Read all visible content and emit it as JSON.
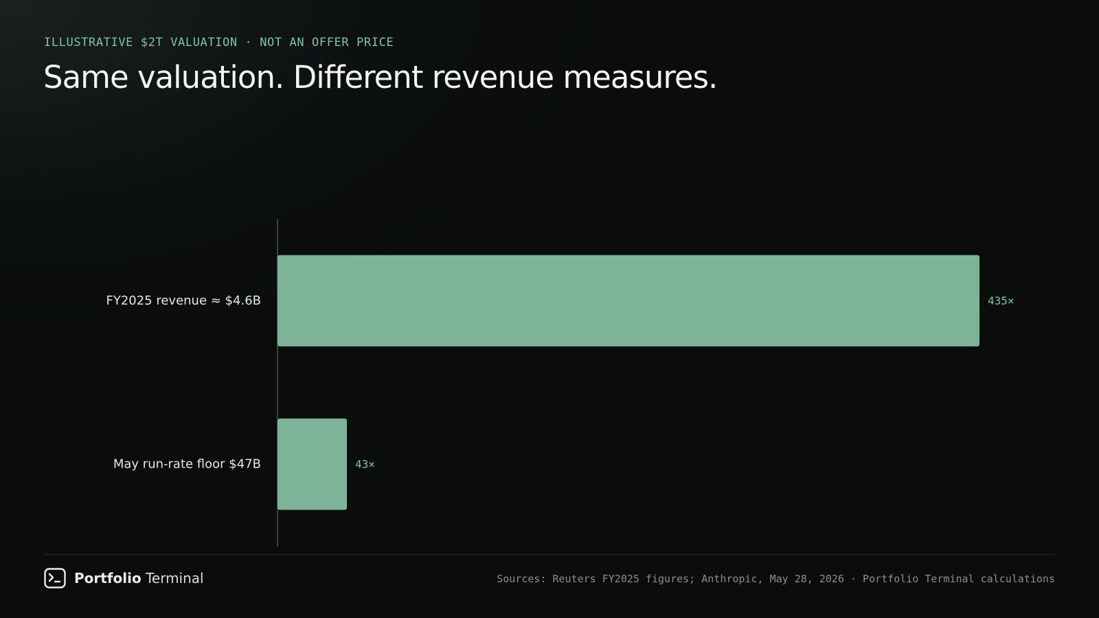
{
  "header": {
    "eyebrow": "ILLUSTRATIVE $2T VALUATION · NOT AN OFFER PRICE",
    "title": "Same valuation. Different revenue measures."
  },
  "chart_data": {
    "type": "bar",
    "orientation": "horizontal",
    "categories": [
      "FY2025 revenue ≈ $4.6B",
      "May run-rate floor $47B"
    ],
    "values": [
      435,
      43
    ],
    "value_labels": [
      "435×",
      "43×"
    ],
    "grid": false,
    "bar_color": "#7db398",
    "label_color": "#7fc3a0"
  },
  "footer": {
    "brand_bold": "Portfolio",
    "brand_light": "Terminal",
    "brand_icon": "terminal-prompt-icon",
    "sources": "Sources: Reuters FY2025 figures; Anthropic, May 28, 2026 · Portfolio Terminal calculations"
  }
}
